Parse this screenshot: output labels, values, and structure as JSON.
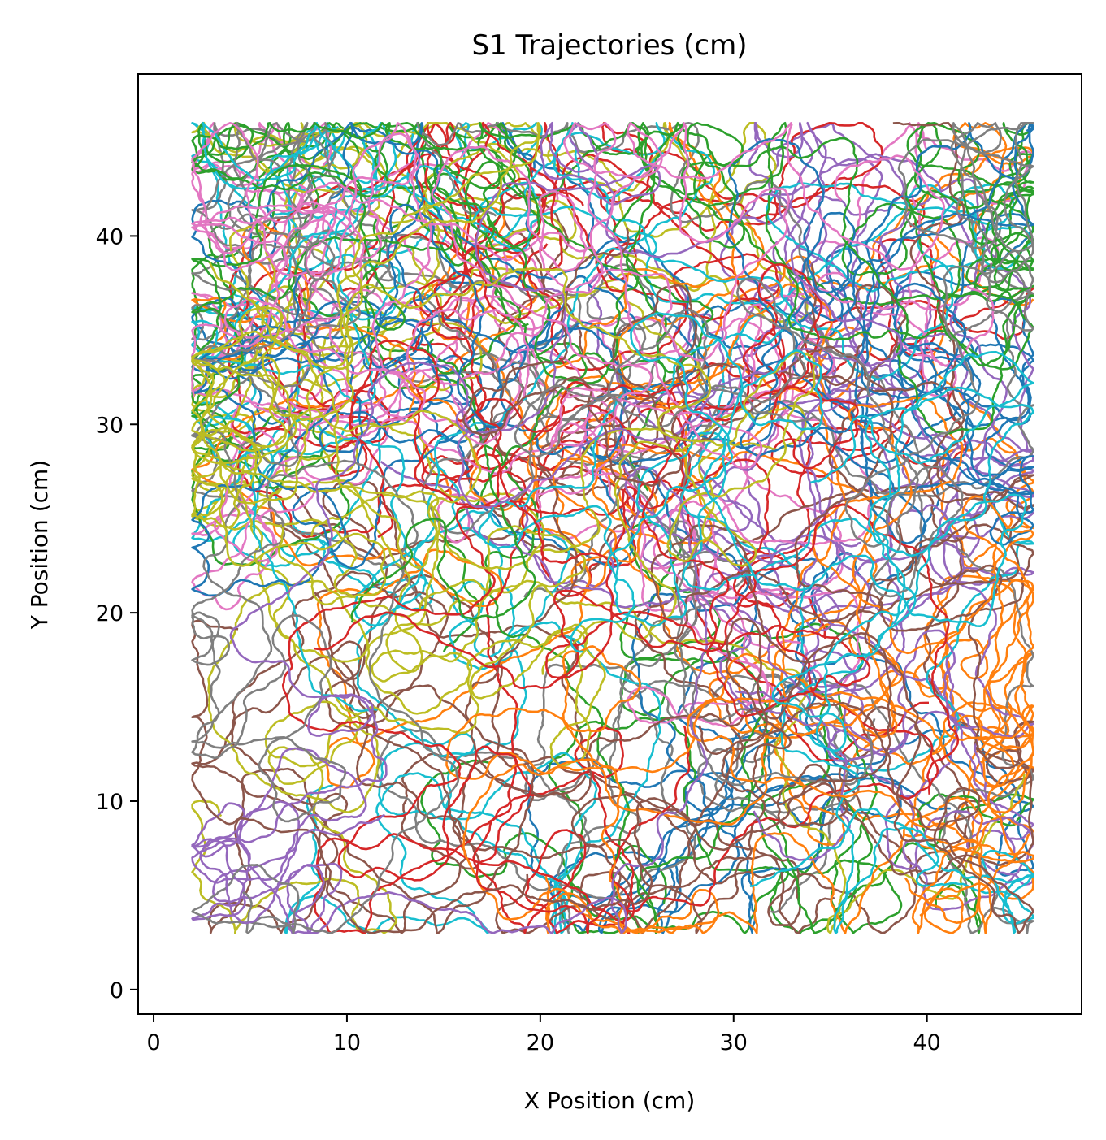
{
  "chart_data": {
    "type": "line",
    "title": "S1 Trajectories (cm)",
    "xlabel": "X Position (cm)",
    "ylabel": "Y Position (cm)",
    "xlim": [
      -0.8,
      48.0
    ],
    "ylim": [
      -1.3,
      48.6
    ],
    "xticks": [
      0,
      10,
      20,
      30,
      40
    ],
    "yticks": [
      0,
      10,
      20,
      30,
      40
    ],
    "grid": false,
    "legend": "none",
    "arena": {
      "x": [
        2.0,
        45.5
      ],
      "y": [
        1.0,
        46.0
      ]
    },
    "series_colors": [
      "#1f77b4",
      "#ff7f0e",
      "#2ca02c",
      "#d62728",
      "#9467bd",
      "#8c564b",
      "#e377c2",
      "#7f7f7f",
      "#bcbd22",
      "#17becf"
    ],
    "num_trajectories": 60
  }
}
